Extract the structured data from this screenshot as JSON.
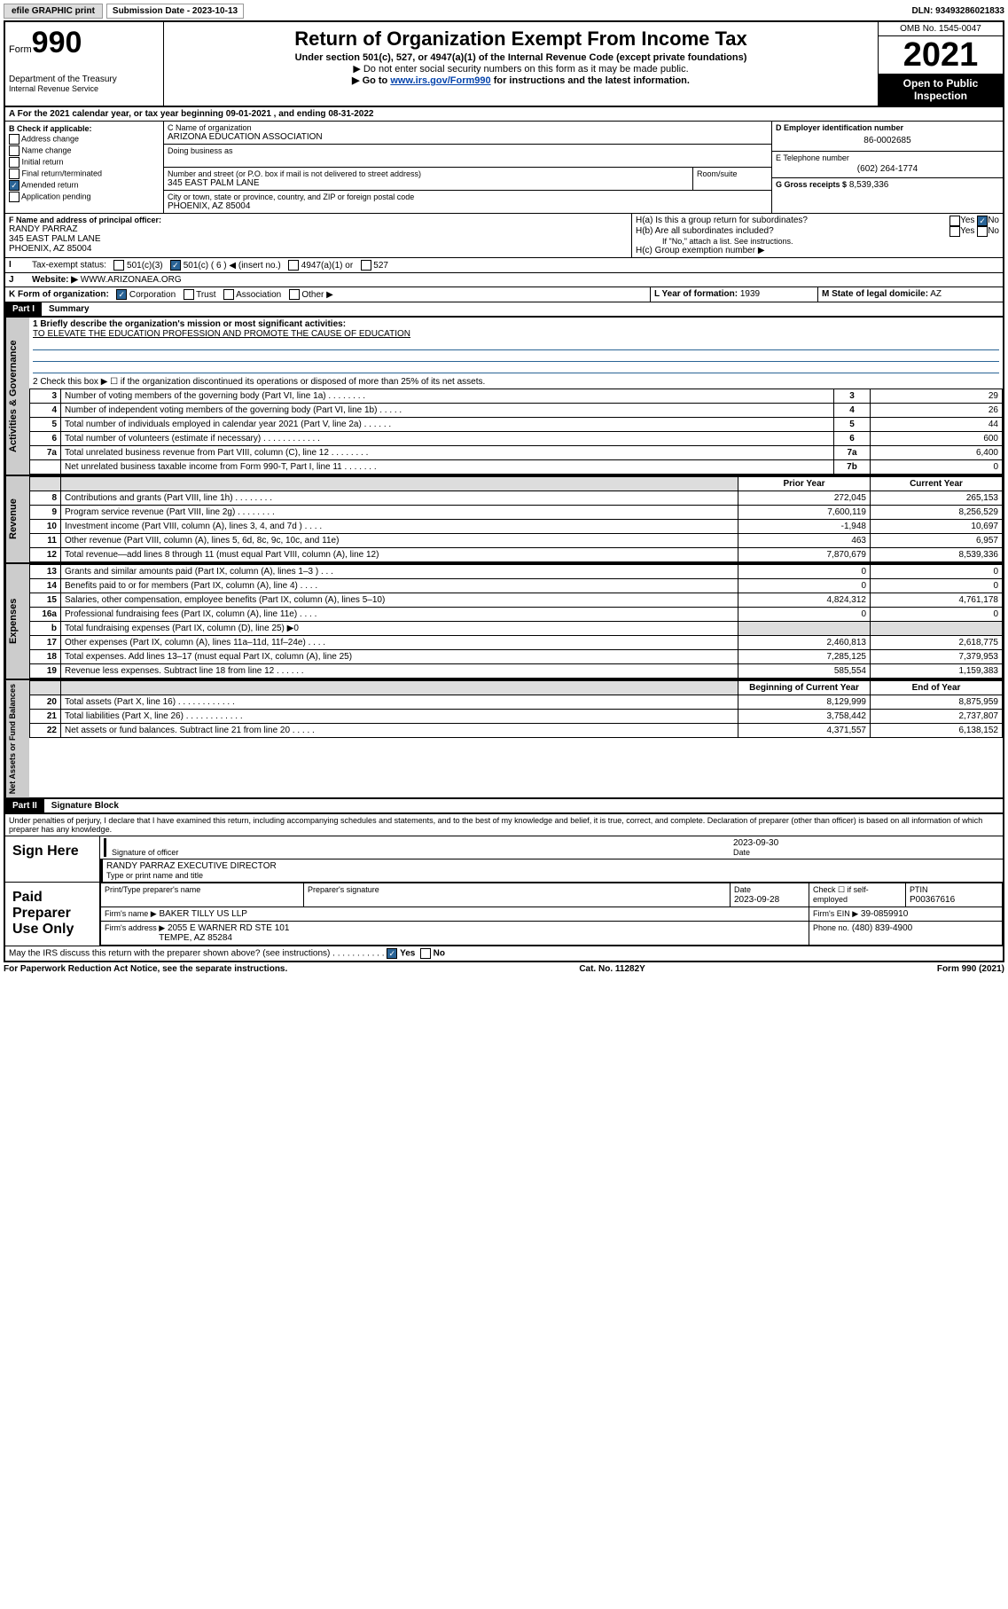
{
  "topbar": {
    "efile": "efile GRAPHIC print",
    "sub_label": "Submission Date - 2023-10-13",
    "dln": "DLN: 93493286021833"
  },
  "header": {
    "form_prefix": "Form",
    "form_num": "990",
    "title": "Return of Organization Exempt From Income Tax",
    "subtitle": "Under section 501(c), 527, or 4947(a)(1) of the Internal Revenue Code (except private foundations)",
    "note1": "▶ Do not enter social security numbers on this form as it may be made public.",
    "note2_pre": "▶ Go to ",
    "note2_link": "www.irs.gov/Form990",
    "note2_post": " for instructions and the latest information.",
    "dept": "Department of the Treasury",
    "irs": "Internal Revenue Service",
    "omb": "OMB No. 1545-0047",
    "year": "2021",
    "open": "Open to Public Inspection"
  },
  "A": {
    "text": "A For the 2021 calendar year, or tax year beginning 09-01-2021     , and ending 08-31-2022"
  },
  "B": {
    "label": "B Check if applicable:",
    "items": [
      "Address change",
      "Name change",
      "Initial return",
      "Final return/terminated",
      "Amended return",
      "Application pending"
    ],
    "checked_idx": 4
  },
  "C": {
    "name_label": "C Name of organization",
    "name": "ARIZONA EDUCATION ASSOCIATION",
    "dba_label": "Doing business as",
    "street_label": "Number and street (or P.O. box if mail is not delivered to street address)",
    "room_label": "Room/suite",
    "street": "345 EAST PALM LANE",
    "city_label": "City or town, state or province, country, and ZIP or foreign postal code",
    "city": "PHOENIX, AZ  85004"
  },
  "D": {
    "label": "D Employer identification number",
    "ein": "86-0002685"
  },
  "E": {
    "label": "E Telephone number",
    "phone": "(602) 264-1774"
  },
  "G": {
    "label": "G Gross receipts $",
    "val": "8,539,336"
  },
  "F": {
    "label": "F  Name and address of principal officer:",
    "name": "RANDY PARRAZ",
    "street": "345 EAST PALM LANE",
    "city": "PHOENIX, AZ  85004"
  },
  "H": {
    "a": "H(a)  Is this a group return for subordinates?",
    "b": "H(b)  Are all subordinates included?",
    "b_note": "If \"No,\" attach a list. See instructions.",
    "c": "H(c)  Group exemption number ▶",
    "yes": "Yes",
    "no": "No"
  },
  "I": {
    "label": "Tax-exempt status:",
    "opts": [
      "501(c)(3)",
      "501(c) ( 6 ) ◀ (insert no.)",
      "4947(a)(1) or",
      "527"
    ],
    "checked": 1
  },
  "J": {
    "label": "Website: ▶",
    "val": "WWW.ARIZONAEA.ORG"
  },
  "K": {
    "label": "K Form of organization:",
    "opts": [
      "Corporation",
      "Trust",
      "Association",
      "Other ▶"
    ],
    "checked": 0
  },
  "L": {
    "label": "L Year of formation:",
    "val": "1939"
  },
  "M": {
    "label": "M State of legal domicile:",
    "val": "AZ"
  },
  "partI": {
    "h": "Part I",
    "t": "Summary"
  },
  "summary": {
    "q1_label": "1  Briefly describe the organization's mission or most significant activities:",
    "q1_val": "TO ELEVATE THE EDUCATION PROFESSION AND PROMOTE THE CAUSE OF EDUCATION",
    "q2": "2   Check this box ▶ ☐  if the organization discontinued its operations or disposed of more than 25% of its net assets.",
    "rows_gov": [
      {
        "n": "3",
        "label": "Number of voting members of the governing body (Part VI, line 1a)   .    .    .    .    .    .    .    .",
        "box": "3",
        "val": "29"
      },
      {
        "n": "4",
        "label": "Number of independent voting members of the governing body (Part VI, line 1b)    .    .    .    .    .",
        "box": "4",
        "val": "26"
      },
      {
        "n": "5",
        "label": "Total number of individuals employed in calendar year 2021 (Part V, line 2a)    .    .    .    .    .    .",
        "box": "5",
        "val": "44"
      },
      {
        "n": "6",
        "label": "Total number of volunteers (estimate if necessary)    .    .    .    .    .    .    .    .    .    .    .    .",
        "box": "6",
        "val": "600"
      },
      {
        "n": "7a",
        "label": "Total unrelated business revenue from Part VIII, column (C), line 12   .    .    .    .    .    .    .    .",
        "box": "7a",
        "val": "6,400"
      },
      {
        "n": "",
        "label": "Net unrelated business taxable income from Form 990-T, Part I, line 11   .    .    .    .    .    .    .",
        "box": "7b",
        "val": "0"
      }
    ],
    "col_h1": "Prior Year",
    "col_h2": "Current Year",
    "rows_rev": [
      {
        "n": "8",
        "label": "Contributions and grants (Part VIII, line 1h)   .    .    .    .    .    .    .    .",
        "py": "272,045",
        "cy": "265,153"
      },
      {
        "n": "9",
        "label": "Program service revenue (Part VIII, line 2g)   .    .    .    .    .    .    .    .",
        "py": "7,600,119",
        "cy": "8,256,529"
      },
      {
        "n": "10",
        "label": "Investment income (Part VIII, column (A), lines 3, 4, and 7d )   .    .    .    .",
        "py": "-1,948",
        "cy": "10,697"
      },
      {
        "n": "11",
        "label": "Other revenue (Part VIII, column (A), lines 5, 6d, 8c, 9c, 10c, and 11e)",
        "py": "463",
        "cy": "6,957"
      },
      {
        "n": "12",
        "label": "Total revenue—add lines 8 through 11 (must equal Part VIII, column (A), line 12)",
        "py": "7,870,679",
        "cy": "8,539,336"
      }
    ],
    "rows_exp": [
      {
        "n": "13",
        "label": "Grants and similar amounts paid (Part IX, column (A), lines 1–3 )   .    .    .",
        "py": "0",
        "cy": "0"
      },
      {
        "n": "14",
        "label": "Benefits paid to or for members (Part IX, column (A), line 4)   .    .    .    .",
        "py": "0",
        "cy": "0"
      },
      {
        "n": "15",
        "label": "Salaries, other compensation, employee benefits (Part IX, column (A), lines 5–10)",
        "py": "4,824,312",
        "cy": "4,761,178"
      },
      {
        "n": "16a",
        "label": "Professional fundraising fees (Part IX, column (A), line 11e)   .    .    .    .",
        "py": "0",
        "cy": "0"
      },
      {
        "n": "b",
        "label": "Total fundraising expenses (Part IX, column (D), line 25) ▶0",
        "py": "",
        "cy": "",
        "shade": true
      },
      {
        "n": "17",
        "label": "Other expenses (Part IX, column (A), lines 11a–11d, 11f–24e)   .    .    .    .",
        "py": "2,460,813",
        "cy": "2,618,775"
      },
      {
        "n": "18",
        "label": "Total expenses. Add lines 13–17 (must equal Part IX, column (A), line 25)",
        "py": "7,285,125",
        "cy": "7,379,953"
      },
      {
        "n": "19",
        "label": "Revenue less expenses. Subtract line 18 from line 12   .    .    .    .    .    .",
        "py": "585,554",
        "cy": "1,159,383"
      }
    ],
    "col_h3": "Beginning of Current Year",
    "col_h4": "End of Year",
    "rows_bal": [
      {
        "n": "20",
        "label": "Total assets (Part X, line 16)   .    .    .    .    .    .    .    .    .    .    .    .",
        "py": "8,129,999",
        "cy": "8,875,959"
      },
      {
        "n": "21",
        "label": "Total liabilities (Part X, line 26)   .    .    .    .    .    .    .    .    .    .    .    .",
        "py": "3,758,442",
        "cy": "2,737,807"
      },
      {
        "n": "22",
        "label": "Net assets or fund balances. Subtract line 21 from line 20   .    .    .    .    .",
        "py": "4,371,557",
        "cy": "6,138,152"
      }
    ]
  },
  "tabs": {
    "gov": "Activities & Governance",
    "rev": "Revenue",
    "exp": "Expenses",
    "bal": "Net Assets or Fund Balances"
  },
  "partII": {
    "h": "Part II",
    "t": "Signature Block",
    "decl": "Under penalties of perjury, I declare that I have examined this return, including accompanying schedules and statements, and to the best of my knowledge and belief, it is true, correct, and complete. Declaration of preparer (other than officer) is based on all information of which preparer has any knowledge."
  },
  "sign": {
    "h": "Sign Here",
    "sig_label": "Signature of officer",
    "date": "2023-09-30",
    "date_label": "Date",
    "name": "RANDY PARRAZ  EXECUTIVE DIRECTOR",
    "name_label": "Type or print name and title"
  },
  "paid": {
    "h": "Paid Preparer Use Only",
    "c1": "Print/Type preparer's name",
    "c2": "Preparer's signature",
    "c3": "Date",
    "c3v": "2023-09-28",
    "c4": "Check ☐ if self-employed",
    "c5": "PTIN",
    "c5v": "P00367616",
    "firm_label": "Firm's name     ▶",
    "firm": "BAKER TILLY US LLP",
    "ein_label": "Firm's EIN ▶",
    "ein": "39-0859910",
    "addr_label": "Firm's address ▶",
    "addr1": "2055 E WARNER RD STE 101",
    "addr2": "TEMPE, AZ  85284",
    "phone_label": "Phone no.",
    "phone": "(480) 839-4900"
  },
  "bottom": {
    "q": "May the IRS discuss this return with the preparer shown above? (see instructions)    .    .    .    .    .    .    .    .    .    .    .",
    "yes": "Yes",
    "no": "No"
  },
  "foot": {
    "l": "For Paperwork Reduction Act Notice, see the separate instructions.",
    "m": "Cat. No. 11282Y",
    "r": "Form 990 (2021)"
  }
}
